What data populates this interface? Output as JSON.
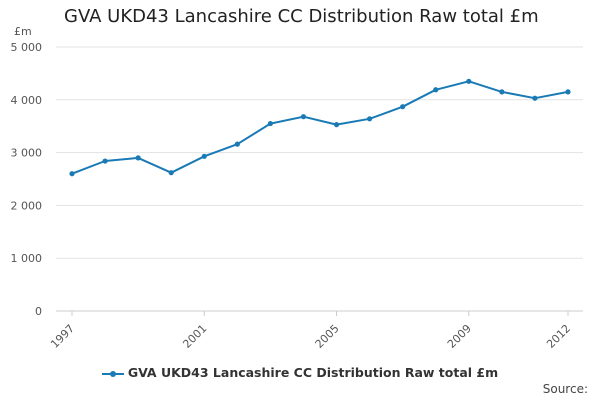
{
  "colors": {
    "series": "#1a7ab5",
    "grid": "#e3e3e3",
    "tick_text": "#555555"
  },
  "chart_data": {
    "type": "line",
    "title": "GVA UKD43 Lancashire CC Distribution Raw total £m",
    "ylabel": "£m",
    "xlabel": "",
    "ylim": [
      0,
      5000
    ],
    "yticks": [
      0,
      1000,
      2000,
      3000,
      4000,
      5000
    ],
    "ytick_labels": [
      "0",
      "1 000",
      "2 000",
      "3 000",
      "4 000",
      "5 000"
    ],
    "xlim": [
      1997,
      2012
    ],
    "xticks": [
      1997,
      2001,
      2005,
      2009,
      2012
    ],
    "xtick_labels": [
      "1997",
      "2001",
      "2005",
      "2009",
      "2012"
    ],
    "grid": true,
    "legend_position": "bottom",
    "series": [
      {
        "name": "GVA UKD43 Lancashire CC Distribution Raw total £m",
        "x": [
          1997,
          1998,
          1999,
          2000,
          2001,
          2002,
          2003,
          2004,
          2005,
          2006,
          2007,
          2008,
          2009,
          2010,
          2011,
          2012
        ],
        "values": [
          2600,
          2840,
          2900,
          2620,
          2930,
          3160,
          3550,
          3680,
          3530,
          3640,
          3870,
          4190,
          4350,
          4150,
          4030,
          4150
        ]
      }
    ],
    "source_label": "Source:"
  }
}
